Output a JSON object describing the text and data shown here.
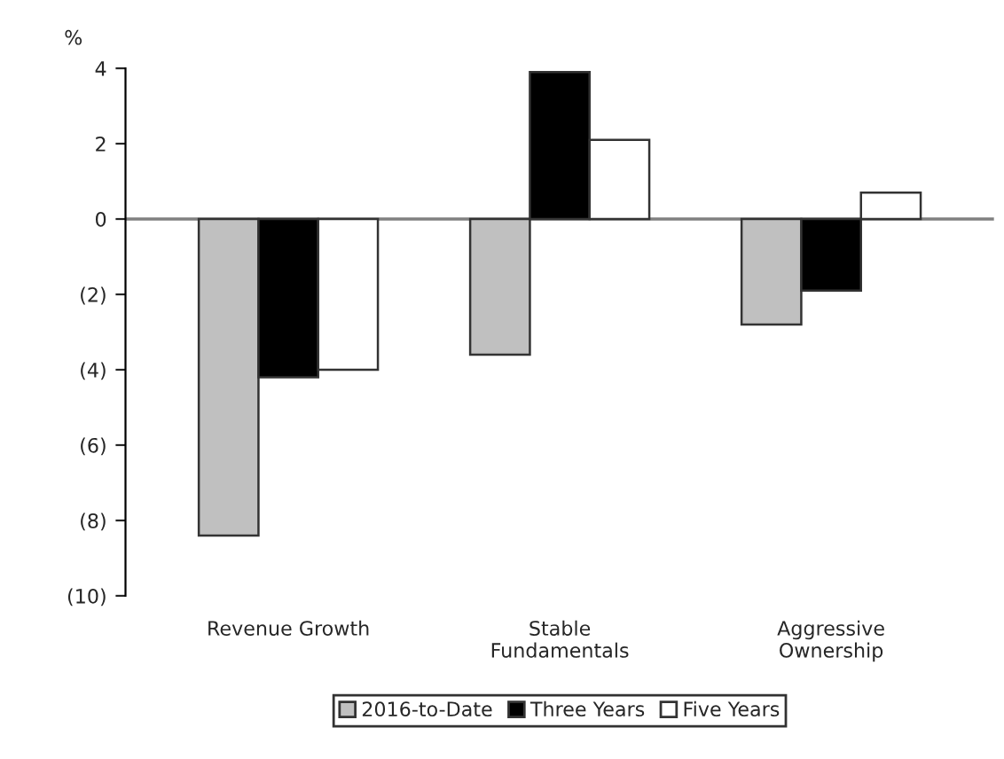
{
  "chart_data": {
    "type": "bar",
    "ylabel": "%",
    "categories": [
      "Revenue Growth",
      "Stable\nFundamentals",
      "Aggressive\nOwnership"
    ],
    "series": [
      {
        "name": "2016-to-Date",
        "color": "#c0c0c0",
        "values": [
          -8.4,
          -3.6,
          -2.8
        ]
      },
      {
        "name": "Three Years",
        "color": "#000000",
        "values": [
          -4.2,
          3.9,
          -1.9
        ]
      },
      {
        "name": "Five Years",
        "color": "#ffffff",
        "values": [
          -4.0,
          2.1,
          0.7
        ]
      }
    ],
    "ylim": [
      -10,
      4
    ],
    "yticks": [
      4,
      2,
      0,
      {
        "value": -2,
        "label": "(2)"
      },
      {
        "value": -4,
        "label": "(4)"
      },
      {
        "value": -6,
        "label": "(6)"
      },
      {
        "value": -8,
        "label": "(8)"
      },
      {
        "value": -10,
        "label": "(10)"
      }
    ],
    "ref_lines": [
      {
        "axis": "y",
        "value": 0,
        "color": "#808080"
      }
    ],
    "legend": "bottom"
  }
}
